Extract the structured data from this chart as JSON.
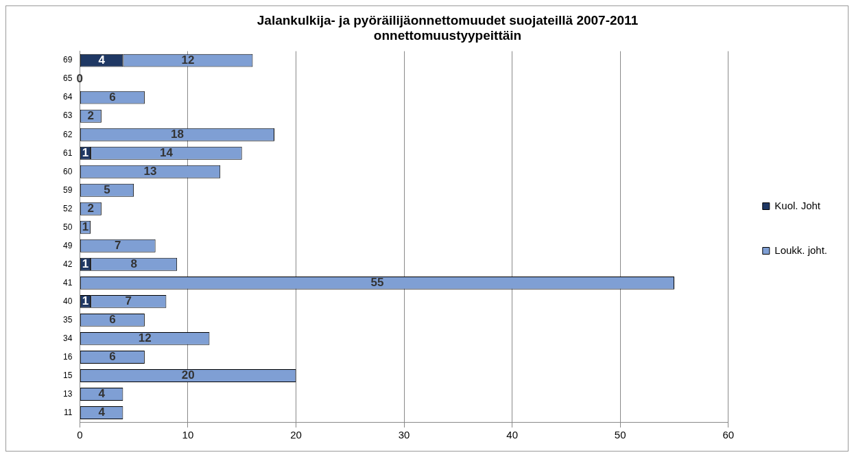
{
  "chart_data": {
    "type": "bar",
    "orientation": "horizontal",
    "stacked": true,
    "title": [
      "Jalankulkija- ja pyöräilijäonnettomuudet suojateillä 2007-2011",
      "onnettomuustyypeittäin"
    ],
    "categories": [
      "69",
      "65",
      "64",
      "63",
      "62",
      "61",
      "60",
      "59",
      "52",
      "50",
      "49",
      "42",
      "41",
      "40",
      "35",
      "34",
      "16",
      "15",
      "13",
      "11"
    ],
    "series": [
      {
        "name": "Kuol. Joht",
        "color": "#1f3864",
        "values": [
          4,
          0,
          null,
          null,
          null,
          1,
          null,
          null,
          null,
          null,
          null,
          1,
          null,
          1,
          null,
          null,
          null,
          null,
          null,
          null
        ]
      },
      {
        "name": "Loukk. joht.",
        "color": "#7f9fd4",
        "values": [
          12,
          null,
          6,
          2,
          18,
          14,
          13,
          5,
          2,
          1,
          7,
          8,
          55,
          7,
          6,
          12,
          6,
          20,
          4,
          4
        ]
      }
    ],
    "xlim": [
      0,
      60
    ],
    "xticks": [
      0,
      10,
      20,
      30,
      40,
      50,
      60
    ],
    "grid": "x",
    "legend": "right",
    "data_labels": true
  }
}
